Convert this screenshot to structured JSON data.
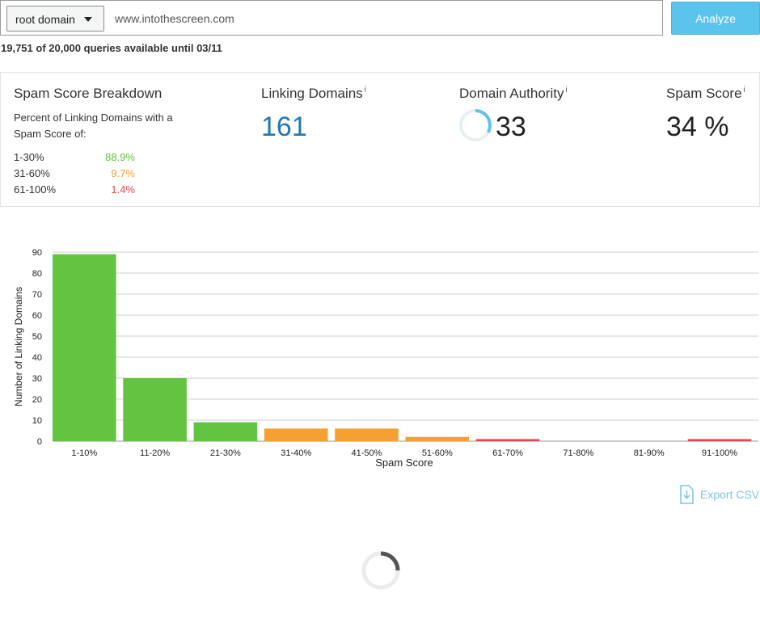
{
  "search": {
    "scope_selected": "root domain",
    "url_value": "www.intothescreen.com",
    "analyze_label": "Analyze"
  },
  "quota_text": "19,751 of 20,000 queries available until 03/11",
  "breakdown": {
    "title": "Spam Score Breakdown",
    "description": "Percent of Linking Domains with a Spam Score of:",
    "rows": [
      {
        "range": "1-30%",
        "value": "88.9%",
        "color": "#62c440"
      },
      {
        "range": "31-60%",
        "value": "9.7%",
        "color": "#f5a033"
      },
      {
        "range": "61-100%",
        "value": "1.4%",
        "color": "#e8484b"
      }
    ]
  },
  "linking_domains": {
    "title": "Linking Domains",
    "info": "i",
    "value": "161",
    "color": "#1f77b4"
  },
  "domain_authority": {
    "title": "Domain Authority",
    "info": "i",
    "value": "33",
    "progress": 0.33,
    "ring_color": "#5bc4ec",
    "track_color": "#e8eff2"
  },
  "spam_score": {
    "title": "Spam Score",
    "info": "i",
    "value": "34 %"
  },
  "chart_data": {
    "type": "bar",
    "categories": [
      "1-10%",
      "11-20%",
      "21-30%",
      "31-40%",
      "41-50%",
      "51-60%",
      "61-70%",
      "71-80%",
      "81-90%",
      "91-100%"
    ],
    "values": [
      89,
      30,
      9,
      6,
      6,
      2,
      1,
      0,
      0,
      1
    ],
    "colors": [
      "#62c440",
      "#62c440",
      "#62c440",
      "#f5a033",
      "#f5a033",
      "#f5a033",
      "#e8484b",
      "#e8484b",
      "#e8484b",
      "#e8484b"
    ],
    "xlabel": "Spam Score",
    "ylabel": "Number of Linking Domains",
    "ylim": [
      0,
      90
    ],
    "yticks": [
      0,
      10,
      20,
      30,
      40,
      50,
      60,
      70,
      80,
      90
    ],
    "grid": true
  },
  "export": {
    "label": "Export CSV",
    "icon": "download-file-icon"
  }
}
